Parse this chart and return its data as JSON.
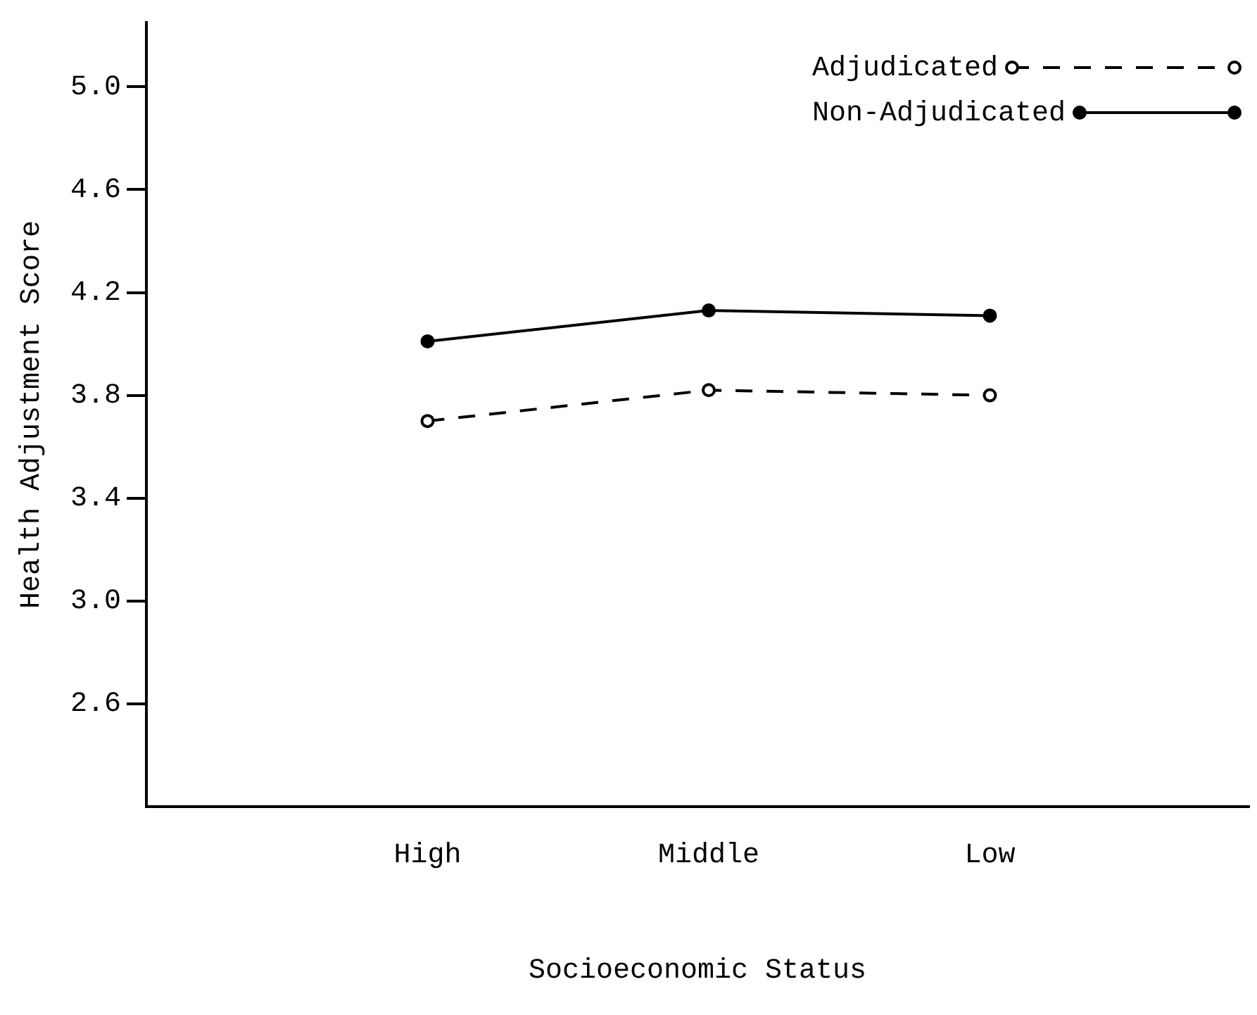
{
  "chart_data": {
    "type": "line",
    "xlabel": "Socioeconomic Status",
    "ylabel": "Health Adjustment Score",
    "categories": [
      "High",
      "Middle",
      "Low"
    ],
    "series": [
      {
        "name": "Adjudicated",
        "color": "#000000",
        "values": [
          3.7,
          3.82,
          3.8
        ],
        "line_style": "dashed"
      },
      {
        "name": "Non-Adjudicated",
        "color": "#000000",
        "values": [
          4.01,
          4.13,
          4.11
        ],
        "line_style": "solid"
      }
    ],
    "ylim": [
      2.2,
      5.25
    ],
    "yticks": [
      {
        "value": 2.6,
        "label": "2.6"
      },
      {
        "value": 3.0,
        "label": "3.0"
      },
      {
        "value": 3.4,
        "label": "3.4"
      },
      {
        "value": 3.8,
        "label": "3.8"
      },
      {
        "value": 4.2,
        "label": "4.2"
      },
      {
        "value": 4.6,
        "label": "4.6"
      },
      {
        "value": 5.0,
        "label": "5.0"
      }
    ],
    "grid": false,
    "legend": "top right",
    "marker": "circle"
  }
}
